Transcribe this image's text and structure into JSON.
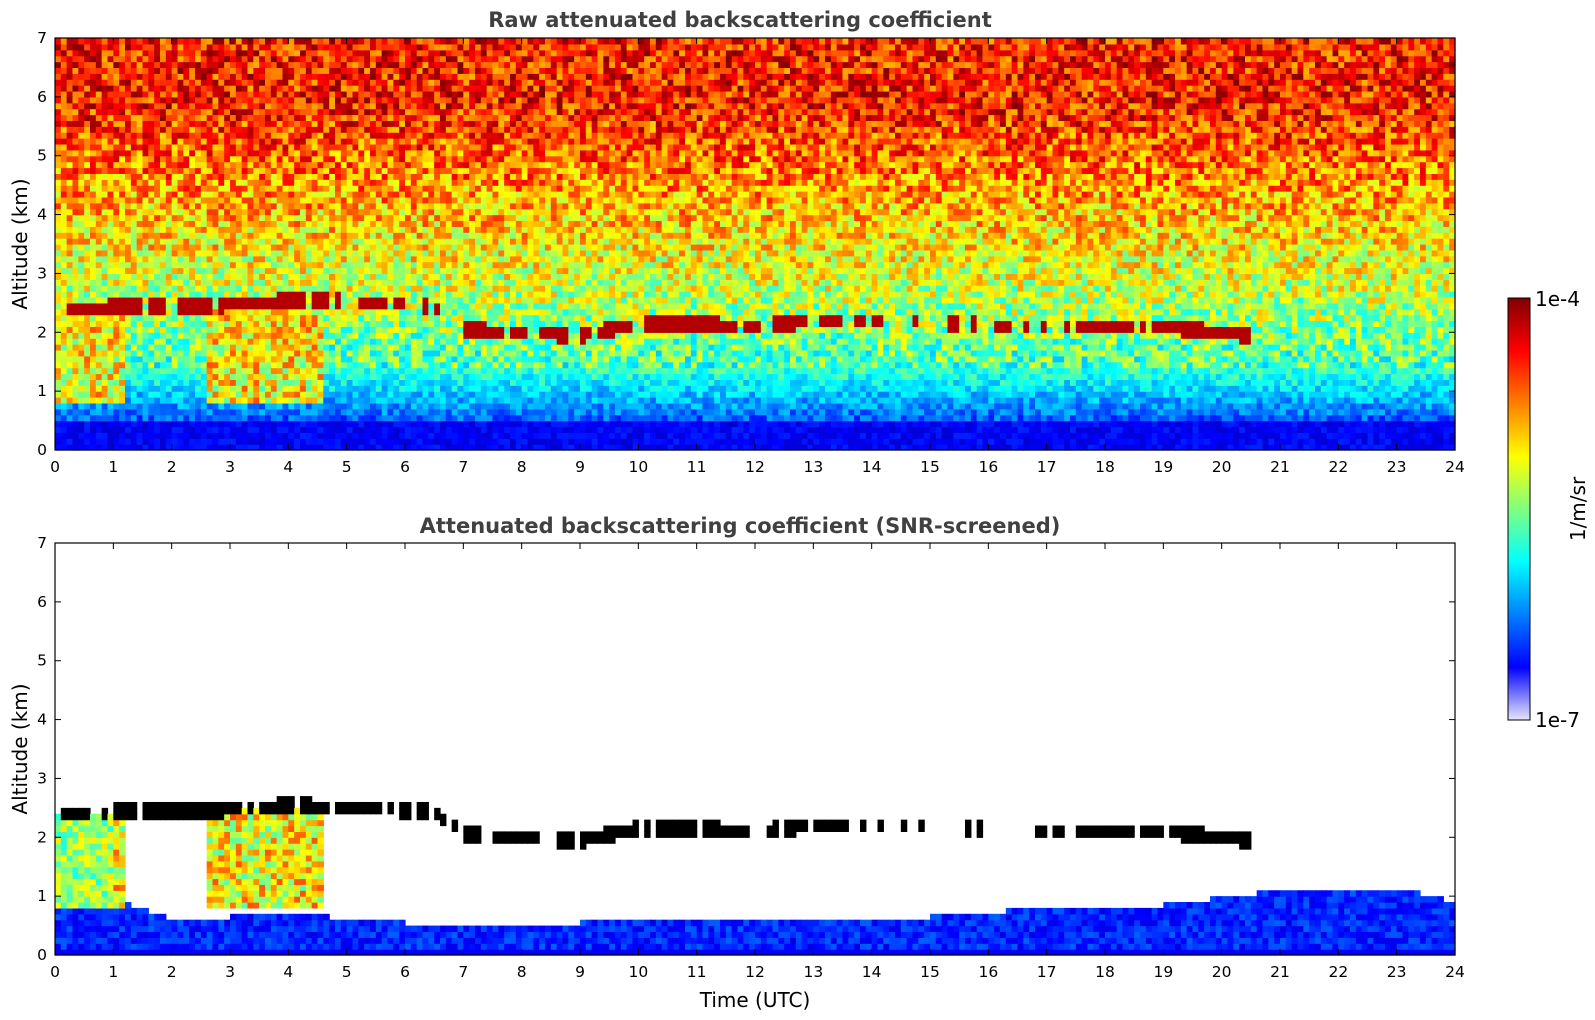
{
  "colors": {
    "colormap": [
      "#000080",
      "#0000ff",
      "#0080ff",
      "#00ffff",
      "#80ff80",
      "#ffff00",
      "#ff8000",
      "#ff0000",
      "#800000"
    ],
    "faint_low": "#e6e6fa",
    "cloud_core_screened": "#000000",
    "background": "#ffffff",
    "title_color": "#404040"
  },
  "chart_data": [
    {
      "type": "heatmap",
      "title": "Raw attenuated backscattering coefficient",
      "xlabel": "",
      "ylabel": "Altitude (km)",
      "x_ticks": [
        "0",
        "1",
        "2",
        "3",
        "4",
        "5",
        "6",
        "7",
        "8",
        "9",
        "10",
        "11",
        "12",
        "13",
        "14",
        "15",
        "16",
        "17",
        "18",
        "19",
        "20",
        "21",
        "22",
        "23",
        "24"
      ],
      "y_ticks": [
        "0",
        "1",
        "2",
        "3",
        "4",
        "5",
        "6",
        "7"
      ],
      "xlim": [
        0,
        24
      ],
      "ylim": [
        0,
        7
      ],
      "grid": false,
      "cloud_layer_km": [
        [
          0.1,
          2.4
        ],
        [
          1.5,
          2.45
        ],
        [
          2.5,
          2.45
        ],
        [
          3.5,
          2.5
        ],
        [
          4.0,
          2.55
        ],
        [
          5.0,
          2.55
        ],
        [
          5.6,
          2.5
        ],
        [
          6.5,
          2.45
        ],
        [
          7.0,
          2.05
        ],
        [
          8.0,
          2.0
        ],
        [
          9.0,
          1.95
        ],
        [
          10.0,
          2.15
        ],
        [
          11.0,
          2.15
        ],
        [
          12.0,
          2.1
        ],
        [
          13.0,
          2.2
        ],
        [
          14.5,
          2.2
        ],
        [
          15.5,
          2.15
        ],
        [
          17.0,
          2.1
        ],
        [
          18.0,
          2.1
        ],
        [
          19.0,
          2.1
        ],
        [
          20.5,
          1.95
        ]
      ]
    },
    {
      "type": "heatmap",
      "title": "Attenuated backscattering coefficient (SNR-screened)",
      "xlabel": "Time (UTC)",
      "ylabel": "Altitude (km)",
      "x_ticks": [
        "0",
        "1",
        "2",
        "3",
        "4",
        "5",
        "6",
        "7",
        "8",
        "9",
        "10",
        "11",
        "12",
        "13",
        "14",
        "15",
        "16",
        "17",
        "18",
        "19",
        "20",
        "21",
        "22",
        "23",
        "24"
      ],
      "y_ticks": [
        "0",
        "1",
        "2",
        "3",
        "4",
        "5",
        "6",
        "7"
      ],
      "xlim": [
        0,
        24
      ],
      "ylim": [
        0,
        7
      ],
      "grid": false,
      "cloud_layer_km": [
        [
          0.1,
          2.4
        ],
        [
          1.5,
          2.45
        ],
        [
          2.5,
          2.45
        ],
        [
          3.5,
          2.5
        ],
        [
          4.0,
          2.55
        ],
        [
          5.0,
          2.5
        ],
        [
          6.5,
          2.45
        ],
        [
          7.0,
          2.05
        ],
        [
          8.0,
          2.0
        ],
        [
          9.0,
          1.95
        ],
        [
          10.0,
          2.15
        ],
        [
          11.0,
          2.15
        ],
        [
          12.0,
          2.1
        ],
        [
          13.0,
          2.2
        ],
        [
          14.5,
          2.2
        ],
        [
          17.0,
          2.1
        ],
        [
          18.0,
          2.1
        ],
        [
          19.0,
          2.1
        ],
        [
          20.5,
          1.95
        ]
      ],
      "boundary_layer_top_km": [
        [
          0.0,
          0.9
        ],
        [
          1.0,
          0.95
        ],
        [
          2.0,
          0.6
        ],
        [
          3.0,
          0.65
        ],
        [
          4.0,
          0.75
        ],
        [
          5.0,
          0.6
        ],
        [
          7.0,
          0.5
        ],
        [
          9.0,
          0.55
        ],
        [
          11.0,
          0.6
        ],
        [
          13.0,
          0.55
        ],
        [
          15.0,
          0.65
        ],
        [
          17.0,
          0.8
        ],
        [
          19.0,
          0.85
        ],
        [
          21.0,
          1.1
        ],
        [
          23.0,
          1.15
        ],
        [
          24.0,
          0.9
        ]
      ]
    }
  ],
  "colorbar": {
    "max_label": "1e-4",
    "min_label": "1e-7",
    "units_label": "1/m/sr"
  }
}
